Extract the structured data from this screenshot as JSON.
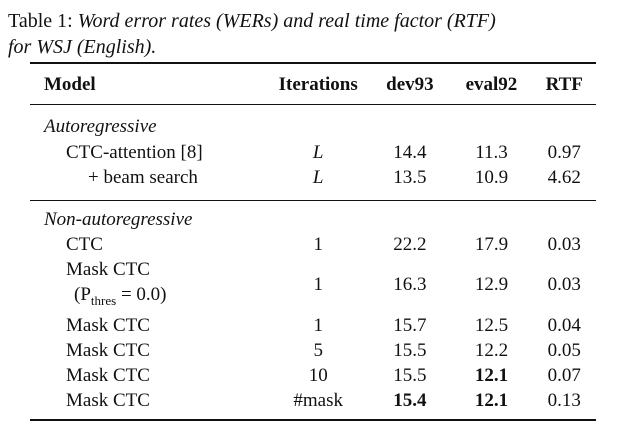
{
  "caption": {
    "label": "Table 1:",
    "text_line1": "Word error rates (WERs) and real time factor (RTF)",
    "text_line2": "for WSJ (English)."
  },
  "table": {
    "headers": {
      "model": "Model",
      "iterations": "Iterations",
      "dev93": "dev93",
      "eval92": "eval92",
      "rtf": "RTF"
    },
    "groups": [
      {
        "title": "Autoregressive",
        "rows": [
          {
            "model": "CTC-attention [8]",
            "iterations": "L",
            "dev93": "14.4",
            "eval92": "11.3",
            "rtf": "0.97"
          },
          {
            "model": "+ beam search",
            "iterations": "L",
            "dev93": "13.5",
            "eval92": "10.9",
            "rtf": "4.62"
          }
        ]
      },
      {
        "title": "Non-autoregressive",
        "rows": [
          {
            "model": "CTC",
            "iterations": "1",
            "dev93": "22.2",
            "eval92": "17.9",
            "rtf": "0.03"
          },
          {
            "model": "Mask CTC",
            "model_note": "(P",
            "model_note_sub": "thres",
            "model_note_end": " = 0.0)",
            "iterations": "1",
            "dev93": "16.3",
            "eval92": "12.9",
            "rtf": "0.03"
          },
          {
            "model": "Mask CTC",
            "iterations": "1",
            "dev93": "15.7",
            "eval92": "12.5",
            "rtf": "0.04"
          },
          {
            "model": "Mask CTC",
            "iterations": "5",
            "dev93": "15.5",
            "eval92": "12.2",
            "rtf": "0.05"
          },
          {
            "model": "Mask CTC",
            "iterations": "10",
            "dev93": "15.5",
            "eval92": "12.1",
            "rtf": "0.07"
          },
          {
            "model": "Mask CTC",
            "iterations": "#mask",
            "dev93": "15.4",
            "eval92": "12.1",
            "rtf": "0.13"
          }
        ]
      }
    ]
  }
}
